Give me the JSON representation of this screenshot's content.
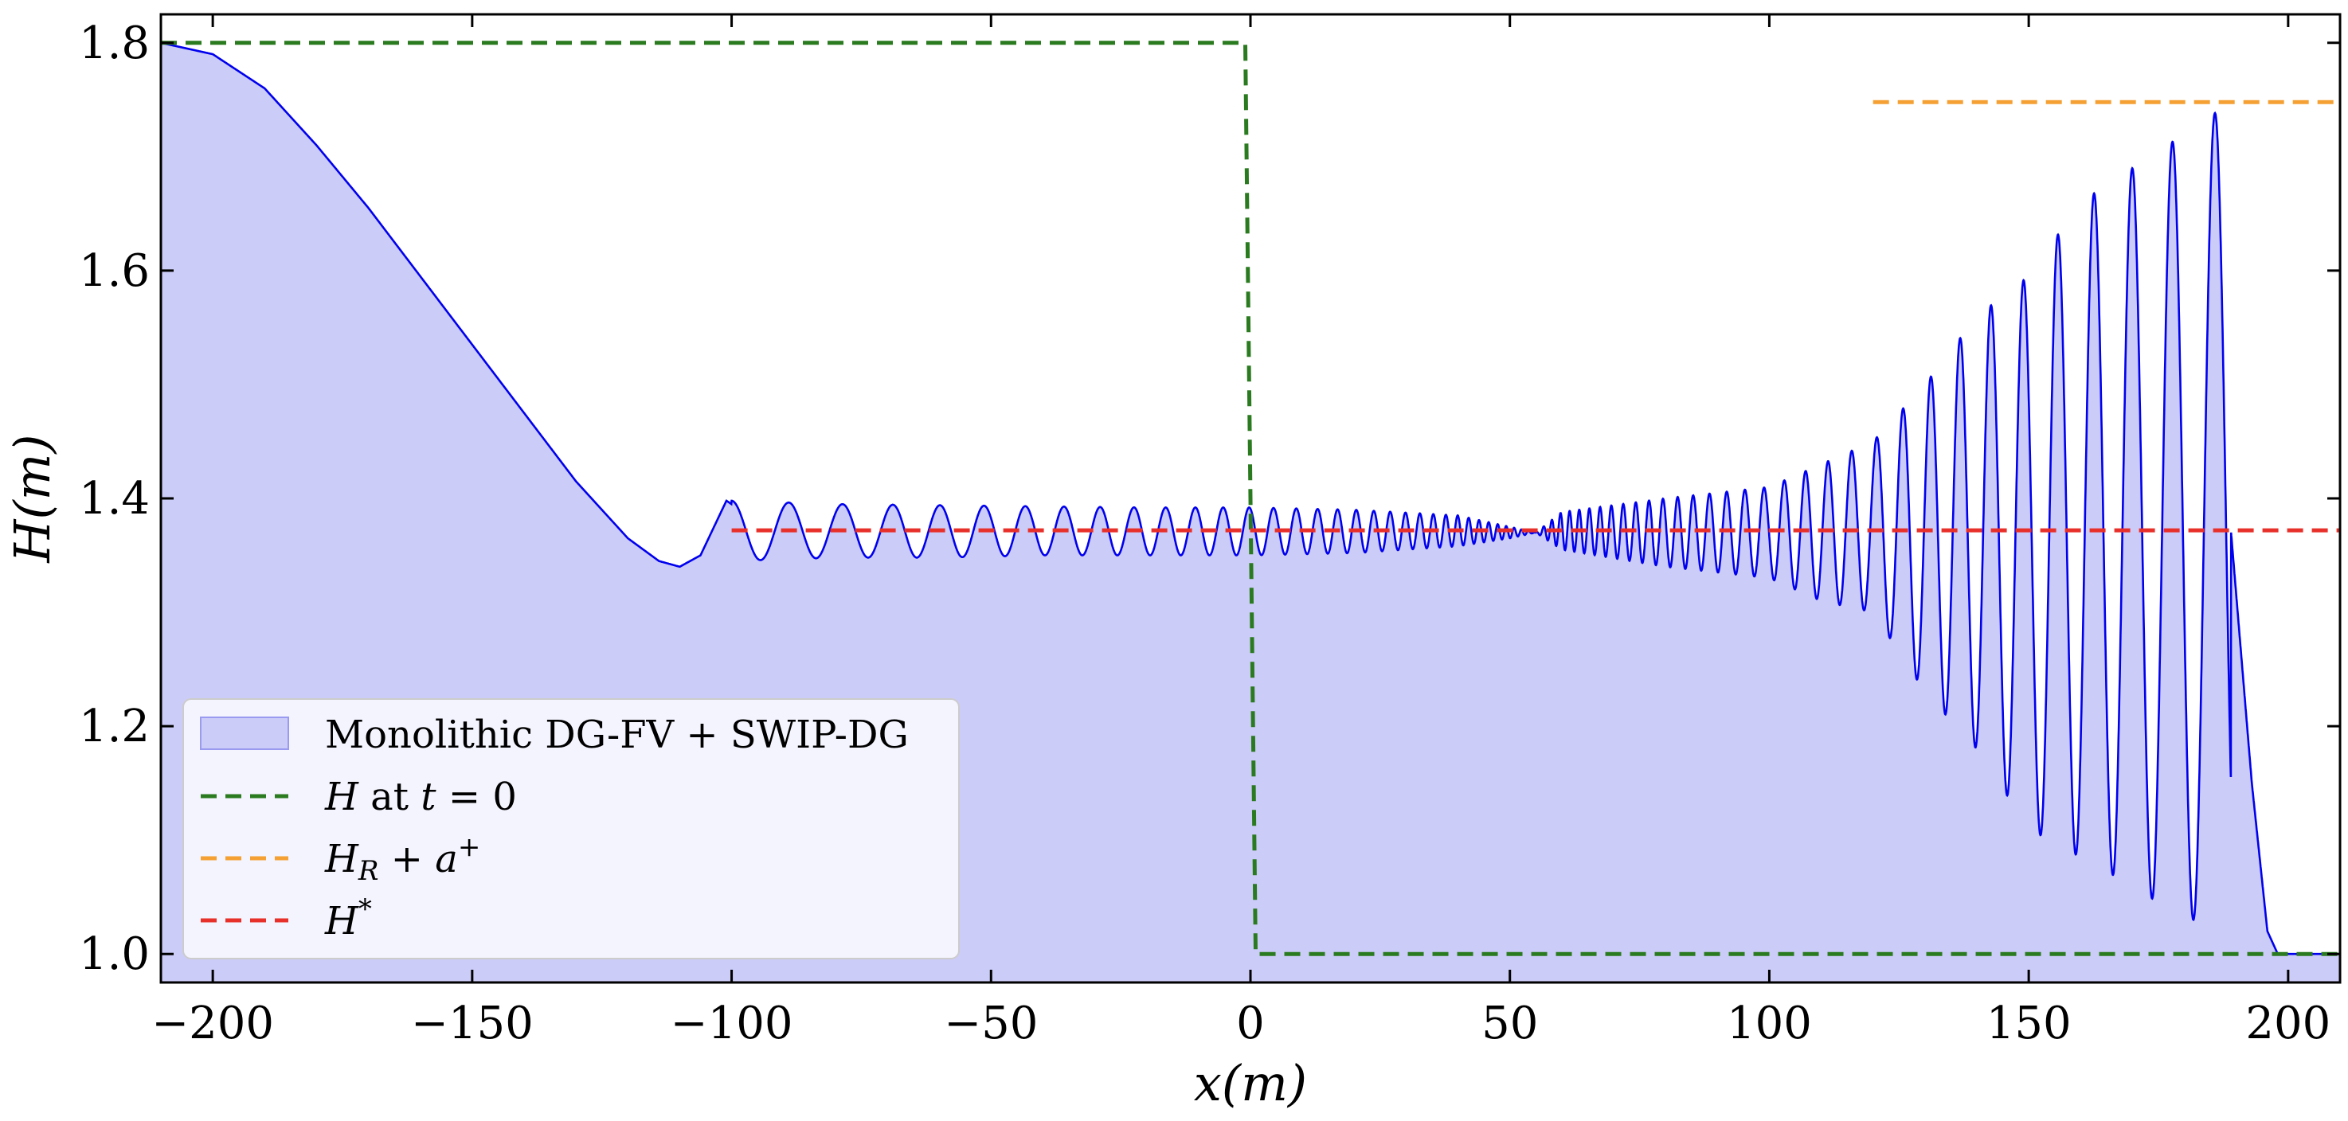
{
  "chart_data": {
    "type": "line",
    "xlabel": "x(m)",
    "ylabel": "H(m)",
    "xlim": [
      -210,
      210
    ],
    "ylim": [
      0.975,
      1.825
    ],
    "xticks": [
      -200,
      -150,
      -100,
      -50,
      0,
      50,
      100,
      150,
      200
    ],
    "xtick_labels": [
      "−200",
      "−150",
      "−100",
      "−50",
      "0",
      "50",
      "100",
      "150",
      "200"
    ],
    "yticks": [
      1.0,
      1.2,
      1.4,
      1.6,
      1.8
    ],
    "ytick_labels": [
      "1.0",
      "1.2",
      "1.4",
      "1.6",
      "1.8"
    ],
    "grid": false,
    "legend_position": "lower-left",
    "series": [
      {
        "name": "Monolithic DG-FV + SWIP-DG",
        "kind": "filled-line",
        "line_color": "#0000ee",
        "fill_color": "#ccccf8",
        "description_points": {
          "x": [
            -210,
            -200,
            -190,
            -180,
            -170,
            -160,
            -150,
            -140,
            -130,
            -120,
            -114,
            -110,
            -106,
            -101,
            -92,
            0,
            50,
            55,
            100,
            140,
            160,
            180,
            189,
            193,
            196,
            198,
            210
          ],
          "y": [
            1.8,
            1.79,
            1.76,
            1.71,
            1.655,
            1.595,
            1.535,
            1.475,
            1.415,
            1.365,
            1.345,
            1.34,
            1.35,
            1.398,
            1.37,
            1.37,
            1.37,
            1.37,
            1.37,
            1.37,
            1.37,
            1.37,
            1.37,
            1.15,
            1.02,
            1.0,
            1.0
          ]
        },
        "oscillation_envelope": {
          "x": [
            -100,
            -80,
            -60,
            -40,
            -20,
            0,
            20,
            40,
            50,
            55,
            60,
            80,
            100,
            110,
            120,
            130,
            140,
            150,
            160,
            170,
            180,
            189
          ],
          "upper": [
            1.398,
            1.395,
            1.394,
            1.393,
            1.392,
            1.392,
            1.39,
            1.385,
            1.375,
            1.37,
            1.388,
            1.4,
            1.41,
            1.43,
            1.45,
            1.5,
            1.56,
            1.595,
            1.66,
            1.69,
            1.72,
            1.748
          ],
          "lower": [
            1.345,
            1.348,
            1.348,
            1.35,
            1.35,
            1.35,
            1.352,
            1.358,
            1.365,
            1.37,
            1.355,
            1.34,
            1.33,
            1.31,
            1.3,
            1.23,
            1.18,
            1.11,
            1.085,
            1.06,
            1.03,
            1.03
          ]
        }
      },
      {
        "name": "H at t = 0",
        "kind": "dashed-line",
        "color": "#2a7a1f",
        "x": [
          -210,
          -1,
          0,
          1,
          210
        ],
        "y": [
          1.8,
          1.8,
          1.4,
          1.0,
          1.0
        ]
      },
      {
        "name": "H_R + a⁺",
        "kind": "dashed-line",
        "color": "#f5a033",
        "x": [
          120,
          210
        ],
        "y": [
          1.748,
          1.748
        ]
      },
      {
        "name": "H*",
        "kind": "dashed-line",
        "color": "#e8302a",
        "x": [
          -100,
          210
        ],
        "y": [
          1.372,
          1.372
        ]
      }
    ],
    "legend": [
      {
        "key": "fill",
        "label": "Monolithic DG-FV + SWIP-DG"
      },
      {
        "key": "green",
        "label_main": "H",
        "label_rest": " at ",
        "label_t": "t",
        "label_eq": " = 0"
      },
      {
        "key": "orange",
        "label_main": "H",
        "label_sub": "R",
        "label_plus": " + ",
        "label_a": "a",
        "label_sup": "+"
      },
      {
        "key": "red",
        "label_main": "H",
        "label_sup": "*"
      }
    ]
  }
}
